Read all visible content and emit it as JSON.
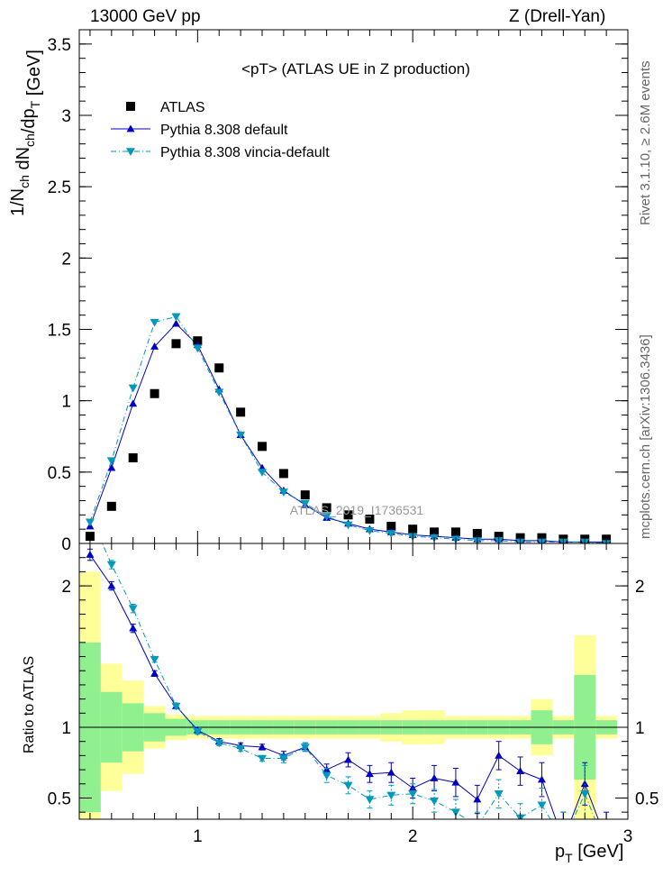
{
  "header": {
    "left": "13000 GeV pp",
    "right": "Z (Drell-Yan)"
  },
  "side_labels": {
    "rivet": "Rivet 3.1.10, ≥ 2.6M events",
    "mcplots": "mcplots.cern.ch [arXiv:1306.3436]"
  },
  "watermark": "ATLAS_2019_I1736531",
  "colors": {
    "atlas": "#000000",
    "default": "#0000c0",
    "vincia": "#0099bb",
    "band_inner": "#90f090",
    "band_outer": "#ffff99"
  },
  "chart_data": [
    {
      "type": "scatter",
      "title": "<pT> (ATLAS UE in Z production)",
      "xlabel": "p_T [GeV]",
      "ylabel": "1/N_ch dN_ch/dp_T [GeV]",
      "xlim": [
        0.45,
        3.0
      ],
      "ylim": [
        0,
        3.6
      ],
      "y_ticks": [
        "0",
        "0.5",
        "1",
        "1.5",
        "2",
        "2.5",
        "3",
        "3.5"
      ],
      "legend_position": "top-left",
      "x": [
        0.5,
        0.6,
        0.7,
        0.8,
        0.9,
        1.0,
        1.1,
        1.2,
        1.3,
        1.4,
        1.5,
        1.6,
        1.7,
        1.8,
        1.9,
        2.0,
        2.1,
        2.2,
        2.3,
        2.4,
        2.5,
        2.6,
        2.7,
        2.8,
        2.9
      ],
      "series": [
        {
          "name": "ATLAS",
          "style": "squares",
          "values": [
            0.05,
            0.26,
            0.6,
            1.05,
            1.4,
            1.42,
            1.23,
            0.92,
            0.68,
            0.49,
            0.34,
            0.25,
            0.2,
            0.17,
            0.12,
            0.1,
            0.08,
            0.08,
            0.07,
            0.05,
            0.04,
            0.04,
            0.03,
            0.03,
            0.03
          ]
        },
        {
          "name": "Pythia 8.308 default",
          "style": "solid-up-triangles",
          "values": [
            0.12,
            0.53,
            0.98,
            1.38,
            1.54,
            1.39,
            1.08,
            0.76,
            0.53,
            0.37,
            0.27,
            0.18,
            0.14,
            0.1,
            0.08,
            0.06,
            0.05,
            0.04,
            0.03,
            0.03,
            0.02,
            0.02,
            0.01,
            0.01,
            0.01
          ]
        },
        {
          "name": "Pythia 8.308 vincia-default",
          "style": "dashdot-down-triangles",
          "values": [
            0.15,
            0.58,
            1.09,
            1.55,
            1.59,
            1.37,
            1.06,
            0.76,
            0.5,
            0.36,
            0.28,
            0.19,
            0.13,
            0.09,
            0.07,
            0.05,
            0.04,
            0.03,
            0.02,
            0.02,
            0.01,
            0.01,
            0.01,
            0.01,
            0.0
          ]
        }
      ]
    },
    {
      "type": "line",
      "xlabel": "p_T [GeV]",
      "ylabel": "Ratio to ATLAS",
      "xlim": [
        0.45,
        3.0
      ],
      "ylim": [
        0.35,
        2.3
      ],
      "x_ticks": [
        "1",
        "2",
        "3"
      ],
      "y_ticks": [
        "0.5",
        "1",
        "2"
      ],
      "x": [
        0.5,
        0.6,
        0.7,
        0.8,
        0.9,
        1.0,
        1.1,
        1.2,
        1.3,
        1.4,
        1.5,
        1.6,
        1.7,
        1.8,
        1.9,
        2.0,
        2.1,
        2.2,
        2.3,
        2.4,
        2.5,
        2.6,
        2.7,
        2.8,
        2.9
      ],
      "bands": {
        "inner_half_width": [
          0.6,
          0.25,
          0.17,
          0.1,
          0.06,
          0.05,
          0.05,
          0.05,
          0.05,
          0.05,
          0.05,
          0.05,
          0.05,
          0.05,
          0.05,
          0.05,
          0.05,
          0.05,
          0.05,
          0.05,
          0.05,
          0.12,
          0.05,
          0.37,
          0.05
        ],
        "outer_half_width": [
          1.1,
          0.45,
          0.33,
          0.15,
          0.09,
          0.08,
          0.08,
          0.08,
          0.08,
          0.08,
          0.08,
          0.08,
          0.08,
          0.08,
          0.1,
          0.12,
          0.12,
          0.08,
          0.08,
          0.08,
          0.08,
          0.2,
          0.08,
          0.65,
          0.08
        ]
      },
      "series": [
        {
          "name": "Pythia 8.308 default",
          "values": [
            2.22,
            2.0,
            1.7,
            1.38,
            1.15,
            0.98,
            0.9,
            0.87,
            0.86,
            0.8,
            0.86,
            0.7,
            0.77,
            0.67,
            0.68,
            0.57,
            0.64,
            0.61,
            0.49,
            0.8,
            0.69,
            0.63,
            0.2,
            0.6,
            0.2
          ],
          "errors": [
            0.04,
            0.03,
            0.03,
            0.02,
            0.02,
            0.02,
            0.02,
            0.02,
            0.02,
            0.03,
            0.03,
            0.04,
            0.05,
            0.06,
            0.07,
            0.07,
            0.09,
            0.1,
            0.1,
            0.1,
            0.1,
            0.12,
            0.2,
            0.15,
            0.2
          ]
        },
        {
          "name": "Pythia 8.308 vincia-default",
          "values": [
            2.5,
            2.15,
            1.84,
            1.48,
            1.15,
            0.97,
            0.89,
            0.85,
            0.78,
            0.78,
            0.86,
            0.66,
            0.59,
            0.49,
            0.52,
            0.53,
            0.48,
            0.4,
            0.3,
            0.53,
            0.36,
            0.45,
            0.2,
            0.53,
            0.15
          ],
          "errors": [
            0.04,
            0.03,
            0.03,
            0.02,
            0.02,
            0.02,
            0.02,
            0.02,
            0.02,
            0.03,
            0.03,
            0.05,
            0.06,
            0.06,
            0.07,
            0.07,
            0.08,
            0.09,
            0.1,
            0.1,
            0.1,
            0.12,
            0.2,
            0.2,
            0.2
          ]
        }
      ]
    }
  ]
}
